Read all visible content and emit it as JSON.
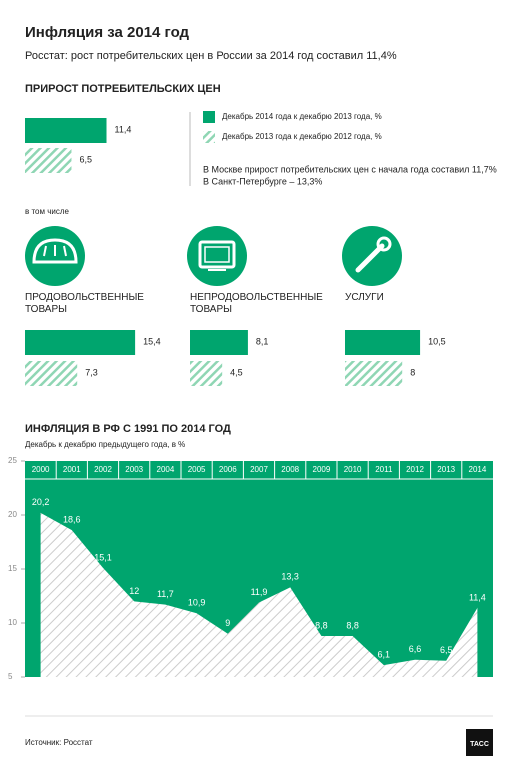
{
  "title": "Инфляция за 2014 год",
  "subtitle": "Росстат: рост потребительских цен в России за 2014 год составил 11,4%",
  "notes": [
    "В Москве прирост потребительских цен с начала года составил 11,7%",
    "В Санкт-Петербурге – 13,3%"
  ],
  "including": "в том числе",
  "source": "Источник: Росстат",
  "logo": "ТАСС",
  "chart_data": [
    {
      "type": "bar",
      "orientation": "horizontal",
      "title": "ПРИРОСТ ПОТРЕБИТЕЛЬСКИХ ЦЕН",
      "series": [
        {
          "name": "Декабрь 2014 года к декабрю 2013 года, %",
          "color": "#00a56e",
          "pattern": "solid",
          "values": [
            11.4
          ],
          "value_labels": [
            "11,4"
          ]
        },
        {
          "name": "Декабрь 2013 года к декабрю 2012 года, %",
          "color": "#8fd6b4",
          "pattern": "hatch",
          "values": [
            6.5
          ],
          "value_labels": [
            "6,5"
          ]
        }
      ]
    },
    {
      "type": "bar",
      "orientation": "horizontal",
      "categories": [
        "ПРОДОВОЛЬСТВЕННЫЕ ТОВАРЫ",
        "НЕПРОДОВОЛЬСТВЕННЫЕ ТОВАРЫ",
        "УСЛУГИ"
      ],
      "series": [
        {
          "color": "#00a56e",
          "pattern": "solid",
          "values": [
            15.4,
            8.1,
            10.5
          ],
          "value_labels": [
            "15,4",
            "8,1",
            "10,5"
          ]
        },
        {
          "color": "#8fd6b4",
          "pattern": "hatch",
          "values": [
            7.3,
            4.5,
            8
          ],
          "value_labels": [
            "7,3",
            "4,5",
            "8"
          ]
        }
      ]
    },
    {
      "type": "area",
      "title": "ИНФЛЯЦИЯ В РФ С 1991 ПО 2014 ГОД",
      "subtitle": "Декабрь к декабрю предыдущего года, в %",
      "categories": [
        "2000",
        "2001",
        "2002",
        "2003",
        "2004",
        "2005",
        "2006",
        "2007",
        "2008",
        "2009",
        "2010",
        "2011",
        "2012",
        "2013",
        "2014"
      ],
      "values": [
        20.2,
        18.6,
        15.1,
        12,
        11.7,
        10.9,
        9,
        11.9,
        13.3,
        8.8,
        8.8,
        6.1,
        6.6,
        6.5,
        11.4
      ],
      "value_labels": [
        "20,2",
        "18,6",
        "15,1",
        "12",
        "11,7",
        "10,9",
        "9",
        "11,9",
        "13,3",
        "8,8",
        "8,8",
        "6,1",
        "6,6",
        "6,5",
        "11,4"
      ],
      "color": "#00a56e",
      "ylim": [
        5,
        25
      ],
      "yticks": [
        5,
        10,
        15,
        20,
        25
      ]
    }
  ]
}
